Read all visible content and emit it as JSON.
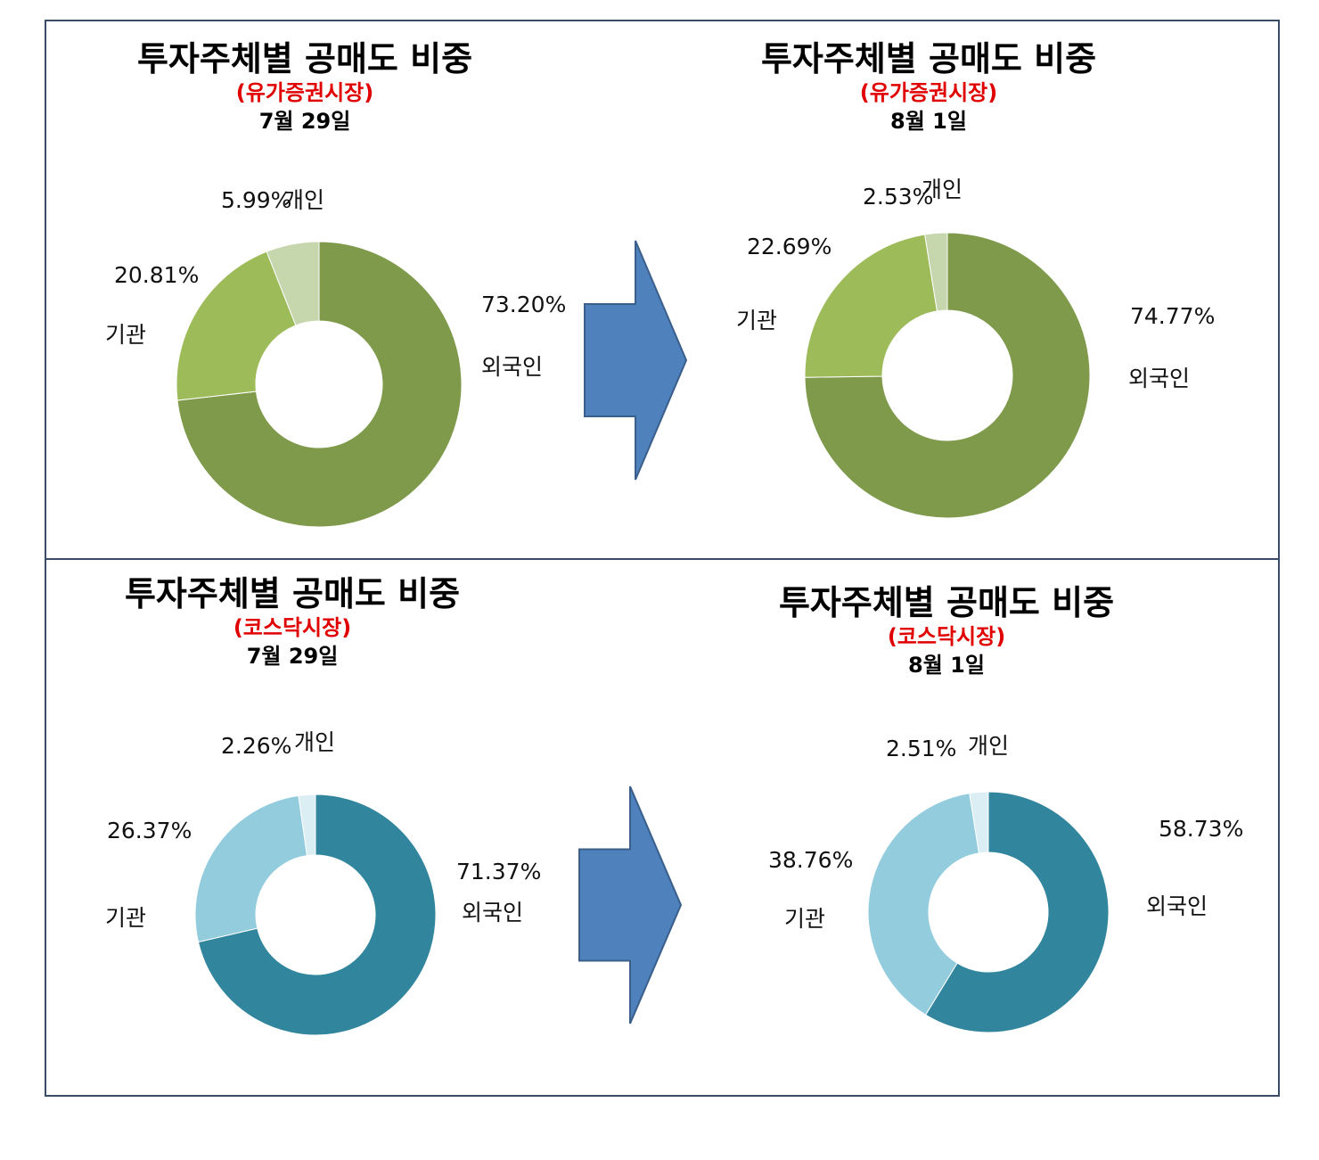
{
  "chart_data": [
    {
      "type": "pie",
      "title": "투자주체별 공매도 비중",
      "market": "(유가증권시장)",
      "date": "7월 29일",
      "categories": [
        "외국인",
        "기관",
        "개인"
      ],
      "values": [
        73.2,
        20.81,
        5.99
      ],
      "value_labels": [
        "73.20%",
        "20.81%",
        "5.99%"
      ],
      "colors": [
        "#7e9a4a",
        "#9dbb59",
        "#c6d6ad"
      ]
    },
    {
      "type": "pie",
      "title": "투자주체별 공매도 비중",
      "market": "(유가증권시장)",
      "date": "8월 1일",
      "categories": [
        "외국인",
        "기관",
        "개인"
      ],
      "values": [
        74.77,
        22.69,
        2.53
      ],
      "value_labels": [
        "74.77%",
        "22.69%",
        "2.53%"
      ],
      "colors": [
        "#7e9a4a",
        "#9dbb59",
        "#c6d6ad"
      ]
    },
    {
      "type": "pie",
      "title": "투자주체별 공매도 비중",
      "market": "(코스닥시장)",
      "date": "7월 29일",
      "categories": [
        "외국인",
        "기관",
        "개인"
      ],
      "values": [
        71.37,
        26.37,
        2.26
      ],
      "value_labels": [
        "71.37%",
        "26.37%",
        "2.26%"
      ],
      "colors": [
        "#31859c",
        "#93cddd",
        "#dbeef3"
      ]
    },
    {
      "type": "pie",
      "title": "투자주체별 공매도 비중",
      "market": "(코스닥시장)",
      "date": "8월 1일",
      "categories": [
        "외국인",
        "기관",
        "개인"
      ],
      "values": [
        58.73,
        38.76,
        2.51
      ],
      "value_labels": [
        "58.73%",
        "38.76%",
        "2.51%"
      ],
      "colors": [
        "#31859c",
        "#93cddd",
        "#dbeef3"
      ]
    }
  ],
  "arrow_color": "#4f81bd"
}
